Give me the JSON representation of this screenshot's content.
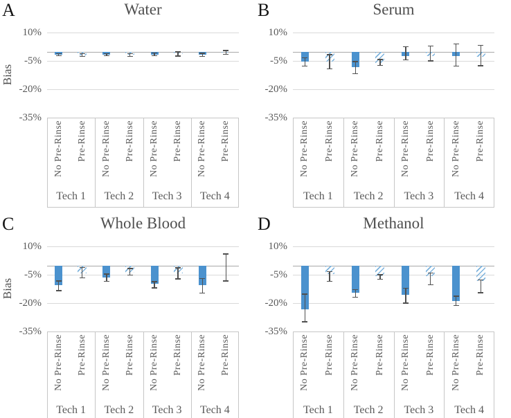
{
  "figure": {
    "panel_count": 4,
    "y_axis_label": "Bias",
    "condition_labels": [
      "No Pre-Rinse",
      "Pre-Rinse"
    ],
    "tech_labels": [
      "Tech 1",
      "Tech 2",
      "Tech 3",
      "Tech 4"
    ],
    "colors": {
      "bar_solid": "#4b92ce",
      "bar_hatch_stripe": "#7db3dd",
      "whisker": "#4f4f4f",
      "gridline": "#d9d9d9",
      "zero_axis_line": "#a8a8a8",
      "box_border": "#c6c6c6",
      "tick_text": "#595959",
      "title_text": "#4f4f4f",
      "letter_text": "#141414",
      "background": "#ffffff"
    }
  },
  "chart_data": [
    {
      "type": "bar",
      "panel_letter": "A",
      "title": "Water",
      "ylabel": "Bias",
      "ylim": [
        -35,
        10
      ],
      "yticks": [
        {
          "label": "10%",
          "value": 10
        },
        {
          "label": "-5%",
          "value": -5
        },
        {
          "label": "-20%",
          "value": -20
        },
        {
          "label": "-35%",
          "value": -35
        }
      ],
      "groups": [
        "Tech 1",
        "Tech 2",
        "Tech 3",
        "Tech 4"
      ],
      "bars": [
        {
          "group": "Tech 1",
          "label": "No Pre-Rinse",
          "value": -1.6,
          "whisker_high": -1.1,
          "whisker_low": -2.1,
          "fill": "solid"
        },
        {
          "group": "Tech 1",
          "label": "Pre-Rinse",
          "value": -1.9,
          "whisker_high": -1.2,
          "whisker_low": -2.6,
          "fill": "hatched"
        },
        {
          "group": "Tech 2",
          "label": "No Pre-Rinse",
          "value": -1.5,
          "whisker_high": -1.0,
          "whisker_low": -2.2,
          "fill": "solid"
        },
        {
          "group": "Tech 2",
          "label": "Pre-Rinse",
          "value": -1.8,
          "whisker_high": -1.1,
          "whisker_low": -2.5,
          "fill": "hatched"
        },
        {
          "group": "Tech 3",
          "label": "No Pre-Rinse",
          "value": -1.5,
          "whisker_high": -0.8,
          "whisker_low": -2.3,
          "fill": "solid"
        },
        {
          "group": "Tech 3",
          "label": "Pre-Rinse",
          "value": -1.3,
          "whisker_high": -0.2,
          "whisker_low": -2.4,
          "fill": "hatched"
        },
        {
          "group": "Tech 4",
          "label": "No Pre-Rinse",
          "value": -1.7,
          "whisker_high": -0.9,
          "whisker_low": -2.6,
          "fill": "solid"
        },
        {
          "group": "Tech 4",
          "label": "Pre-Rinse",
          "value": -0.5,
          "whisker_high": 0.6,
          "whisker_low": -1.4,
          "fill": "hatched"
        }
      ]
    },
    {
      "type": "bar",
      "panel_letter": "B",
      "title": "Serum",
      "ylabel": "",
      "ylim": [
        -35,
        10
      ],
      "yticks": [
        {
          "label": "10%",
          "value": 10
        },
        {
          "label": "-5%",
          "value": -5
        },
        {
          "label": "-20%",
          "value": -20
        },
        {
          "label": "-35%",
          "value": -35
        }
      ],
      "groups": [
        "Tech 1",
        "Tech 2",
        "Tech 3",
        "Tech 4"
      ],
      "bars": [
        {
          "group": "Tech 1",
          "label": "No Pre-Rinse",
          "value": -5.3,
          "whisker_high": -3.4,
          "whisker_low": -7.7,
          "fill": "solid"
        },
        {
          "group": "Tech 1",
          "label": "Pre-Rinse",
          "value": -5.2,
          "whisker_high": -1.6,
          "whisker_low": -9.2,
          "fill": "hatched"
        },
        {
          "group": "Tech 2",
          "label": "No Pre-Rinse",
          "value": -8.4,
          "whisker_high": -5.4,
          "whisker_low": -11.8,
          "fill": "solid"
        },
        {
          "group": "Tech 2",
          "label": "Pre-Rinse",
          "value": -5.9,
          "whisker_high": -4.3,
          "whisker_low": -7.4,
          "fill": "hatched"
        },
        {
          "group": "Tech 3",
          "label": "No Pre-Rinse",
          "value": -2.4,
          "whisker_high": 2.5,
          "whisker_low": -4.5,
          "fill": "solid"
        },
        {
          "group": "Tech 3",
          "label": "Pre-Rinse",
          "value": -2.4,
          "whisker_high": 3.0,
          "whisker_low": -4.9,
          "fill": "hatched"
        },
        {
          "group": "Tech 4",
          "label": "No Pre-Rinse",
          "value": -2.3,
          "whisker_high": 4.0,
          "whisker_low": -7.8,
          "fill": "solid"
        },
        {
          "group": "Tech 4",
          "label": "Pre-Rinse",
          "value": -2.6,
          "whisker_high": 3.4,
          "whisker_low": -7.6,
          "fill": "hatched"
        }
      ]
    },
    {
      "type": "bar",
      "panel_letter": "C",
      "title": "Whole Blood",
      "ylabel": "Bias",
      "ylim": [
        -35,
        10
      ],
      "yticks": [
        {
          "label": "10%",
          "value": 10
        },
        {
          "label": "-5%",
          "value": -5
        },
        {
          "label": "-20%",
          "value": -20
        },
        {
          "label": "-35%",
          "value": -35
        }
      ],
      "groups": [
        "Tech 1",
        "Tech 2",
        "Tech 3",
        "Tech 4"
      ],
      "bars": [
        {
          "group": "Tech 1",
          "label": "No Pre-Rinse",
          "value": -10.4,
          "whisker_high": -8.3,
          "whisker_low": -13.4,
          "fill": "solid"
        },
        {
          "group": "Tech 1",
          "label": "Pre-Rinse",
          "value": -4.3,
          "whisker_high": -1.2,
          "whisker_low": -6.7,
          "fill": "hatched"
        },
        {
          "group": "Tech 2",
          "label": "No Pre-Rinse",
          "value": -6.3,
          "whisker_high": -4.6,
          "whisker_low": -8.5,
          "fill": "solid"
        },
        {
          "group": "Tech 2",
          "label": "Pre-Rinse",
          "value": -3.9,
          "whisker_high": -1.6,
          "whisker_low": -5.2,
          "fill": "hatched"
        },
        {
          "group": "Tech 3",
          "label": "No Pre-Rinse",
          "value": -9.8,
          "whisker_high": -8.7,
          "whisker_low": -11.9,
          "fill": "solid"
        },
        {
          "group": "Tech 3",
          "label": "Pre-Rinse",
          "value": -4.1,
          "whisker_high": -1.3,
          "whisker_low": -7.2,
          "fill": "hatched"
        },
        {
          "group": "Tech 4",
          "label": "No Pre-Rinse",
          "value": -10.5,
          "whisker_high": -7.0,
          "whisker_low": -14.8,
          "fill": "solid"
        },
        {
          "group": "Tech 4",
          "label": "Pre-Rinse",
          "value": -0.3,
          "whisker_high": 6.0,
          "whisker_low": -8.3,
          "fill": "hatched"
        }
      ]
    },
    {
      "type": "bar",
      "panel_letter": "D",
      "title": "Methanol",
      "ylabel": "",
      "ylim": [
        -35,
        10
      ],
      "yticks": [
        {
          "label": "10%",
          "value": 10
        },
        {
          "label": "-5%",
          "value": -5
        },
        {
          "label": "-20%",
          "value": -20
        },
        {
          "label": "-35%",
          "value": -35
        }
      ],
      "groups": [
        "Tech 1",
        "Tech 2",
        "Tech 3",
        "Tech 4"
      ],
      "bars": [
        {
          "group": "Tech 1",
          "label": "No Pre-Rinse",
          "value": -23.2,
          "whisker_high": -15.3,
          "whisker_low": -30.0,
          "fill": "solid"
        },
        {
          "group": "Tech 1",
          "label": "Pre-Rinse",
          "value": -4.7,
          "whisker_high": -3.2,
          "whisker_low": -8.5,
          "fill": "hatched"
        },
        {
          "group": "Tech 2",
          "label": "No Pre-Rinse",
          "value": -14.6,
          "whisker_high": -12.8,
          "whisker_low": -16.9,
          "fill": "solid"
        },
        {
          "group": "Tech 2",
          "label": "Pre-Rinse",
          "value": -5.7,
          "whisker_high": -4.9,
          "whisker_low": -7.4,
          "fill": "hatched"
        },
        {
          "group": "Tech 3",
          "label": "No Pre-Rinse",
          "value": -15.6,
          "whisker_high": -12.2,
          "whisker_low": -20.1,
          "fill": "solid"
        },
        {
          "group": "Tech 3",
          "label": "Pre-Rinse",
          "value": -5.7,
          "whisker_high": -4.1,
          "whisker_low": -10.4,
          "fill": "hatched"
        },
        {
          "group": "Tech 4",
          "label": "No Pre-Rinse",
          "value": -18.9,
          "whisker_high": -16.4,
          "whisker_low": -21.4,
          "fill": "solid"
        },
        {
          "group": "Tech 4",
          "label": "Pre-Rinse",
          "value": -8.4,
          "whisker_high": -7.8,
          "whisker_low": -14.5,
          "fill": "hatched"
        }
      ]
    }
  ]
}
